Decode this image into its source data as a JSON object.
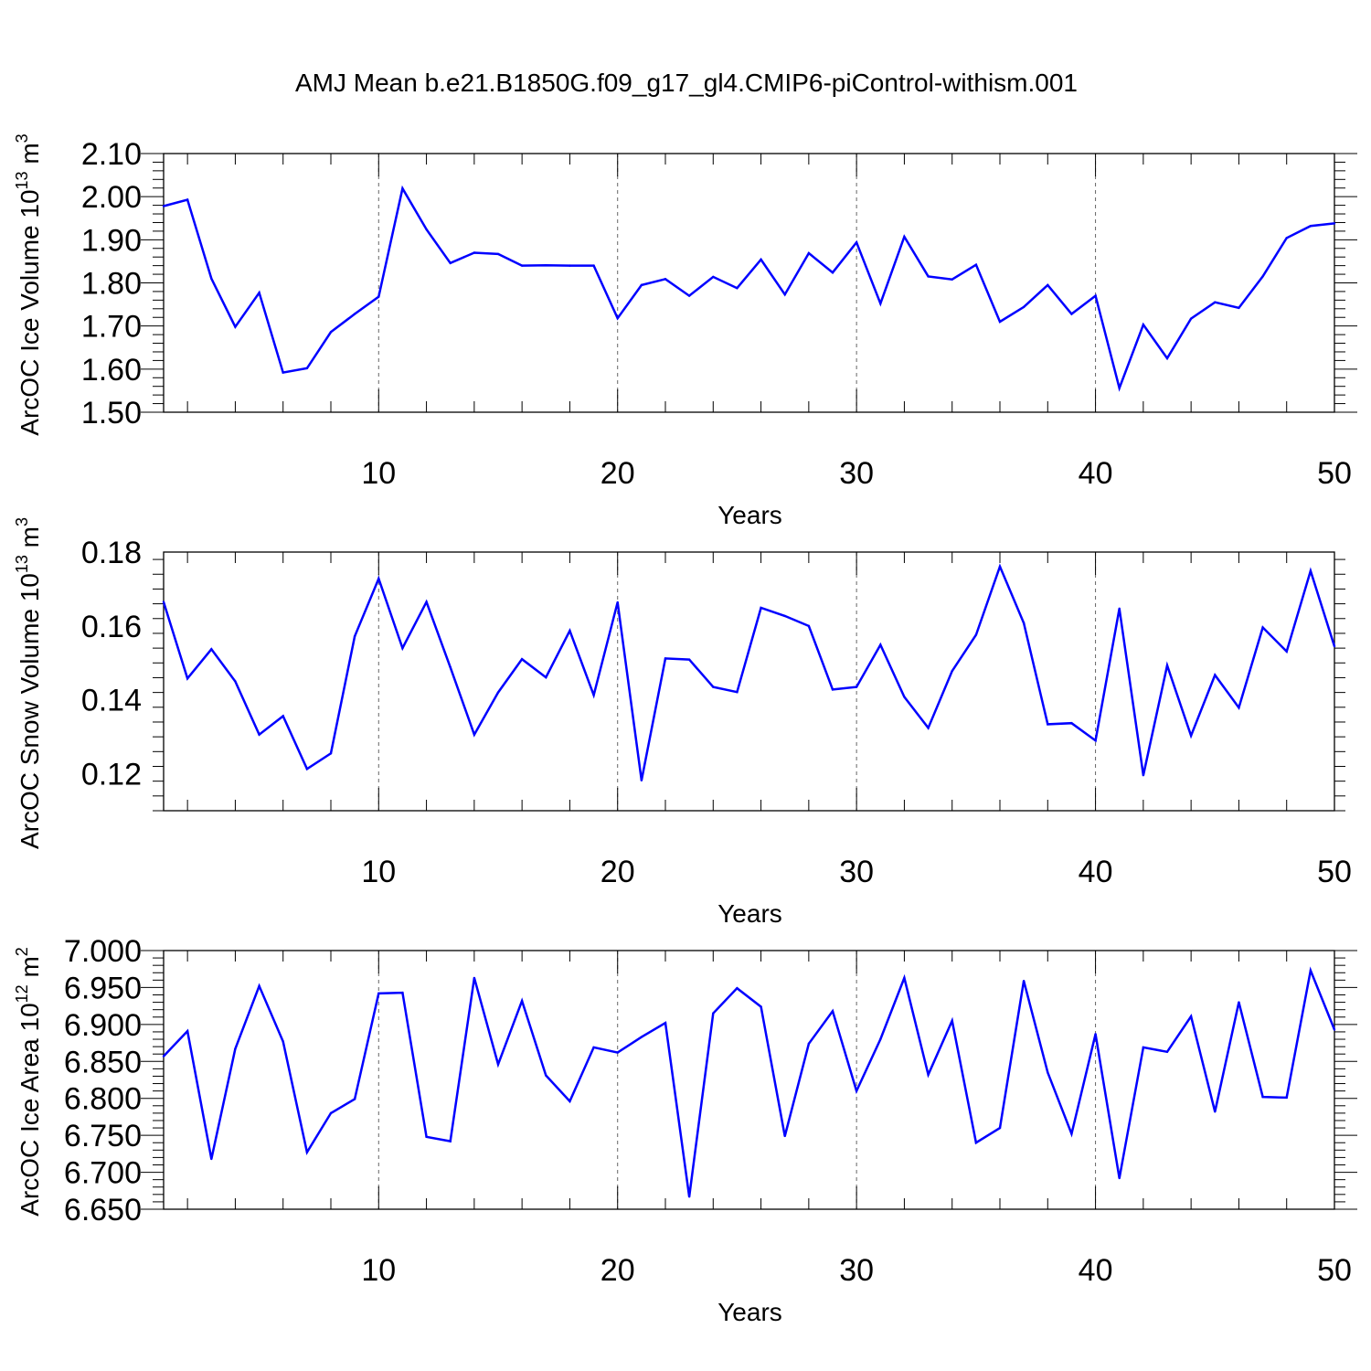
{
  "title": "AMJ Mean b.e21.B1850G.f09_g17_gl4.CMIP6-piControl-withism.001",
  "chart_data": [
    {
      "type": "line",
      "xlabel": "Years",
      "ylabel": "ArcOC Ice Volume 10",
      "ylabel_sup1": "13",
      "ylabel_mid": " m",
      "ylabel_sup2": "3",
      "xlim": [
        1,
        50
      ],
      "ylim": [
        1.5,
        2.1
      ],
      "xticks": [
        10,
        20,
        30,
        40,
        50
      ],
      "yticks": [
        "1.50",
        "1.60",
        "1.70",
        "1.80",
        "1.90",
        "2.00",
        "2.10"
      ],
      "ytick_values": [
        1.5,
        1.6,
        1.7,
        1.8,
        1.9,
        2.0,
        2.1
      ],
      "color": "#0000ff",
      "x": [
        1,
        2,
        3,
        4,
        5,
        6,
        7,
        8,
        9,
        10,
        11,
        12,
        13,
        14,
        15,
        16,
        17,
        18,
        19,
        20,
        21,
        22,
        23,
        24,
        25,
        26,
        27,
        28,
        29,
        30,
        31,
        32,
        33,
        34,
        35,
        36,
        37,
        38,
        39,
        40,
        41,
        42,
        43,
        44,
        45,
        46,
        47,
        48,
        49,
        50
      ],
      "values": [
        1.978,
        1.993,
        1.81,
        1.698,
        1.777,
        1.592,
        1.602,
        1.686,
        1.728,
        1.768,
        2.019,
        1.924,
        1.846,
        1.87,
        1.867,
        1.84,
        1.841,
        1.84,
        1.84,
        1.718,
        1.795,
        1.809,
        1.77,
        1.814,
        1.788,
        1.854,
        1.773,
        1.869,
        1.824,
        1.894,
        1.752,
        1.907,
        1.815,
        1.808,
        1.842,
        1.71,
        1.744,
        1.795,
        1.728,
        1.77,
        1.556,
        1.703,
        1.625,
        1.717,
        1.755,
        1.742,
        1.815,
        1.904,
        1.932,
        1.938
      ]
    },
    {
      "type": "line",
      "xlabel": "Years",
      "ylabel": "ArcOC Snow Volume 10",
      "ylabel_sup1": "13",
      "ylabel_mid": " m",
      "ylabel_sup2": "3",
      "xlim": [
        1,
        50
      ],
      "ylim": [
        0.11,
        0.18
      ],
      "xticks": [
        10,
        20,
        30,
        40,
        50
      ],
      "yticks": [
        "0.12",
        "0.14",
        "0.16",
        "0.18"
      ],
      "ytick_values": [
        0.12,
        0.14,
        0.16,
        0.18
      ],
      "color": "#0000ff",
      "x": [
        1,
        2,
        3,
        4,
        5,
        6,
        7,
        8,
        9,
        10,
        11,
        12,
        13,
        14,
        15,
        16,
        17,
        18,
        19,
        20,
        21,
        22,
        23,
        24,
        25,
        26,
        27,
        28,
        29,
        30,
        31,
        32,
        33,
        34,
        35,
        36,
        37,
        38,
        39,
        40,
        41,
        42,
        43,
        44,
        45,
        46,
        47,
        48,
        49,
        50
      ],
      "values": [
        0.1665,
        0.1458,
        0.1537,
        0.145,
        0.1306,
        0.1356,
        0.1213,
        0.1255,
        0.1572,
        0.1728,
        0.154,
        0.1665,
        0.1488,
        0.1306,
        0.142,
        0.151,
        0.1461,
        0.1587,
        0.1413,
        0.1664,
        0.1182,
        0.1512,
        0.1509,
        0.1435,
        0.1421,
        0.1649,
        0.1627,
        0.16,
        0.1428,
        0.1435,
        0.1549,
        0.1408,
        0.1324,
        0.1478,
        0.1576,
        0.1761,
        0.1608,
        0.1334,
        0.1337,
        0.129,
        0.1647,
        0.1196,
        0.1493,
        0.1303,
        0.1467,
        0.1379,
        0.1596,
        0.1531,
        0.1749,
        0.1545
      ]
    },
    {
      "type": "line",
      "xlabel": "Years",
      "ylabel": "ArcOC Ice Area 10",
      "ylabel_sup1": "12",
      "ylabel_mid": " m",
      "ylabel_sup2": "2",
      "xlim": [
        1,
        50
      ],
      "ylim": [
        6.65,
        7.0
      ],
      "xticks": [
        10,
        20,
        30,
        40,
        50
      ],
      "yticks": [
        "6.650",
        "6.700",
        "6.750",
        "6.800",
        "6.850",
        "6.900",
        "6.950",
        "7.000"
      ],
      "ytick_values": [
        6.65,
        6.7,
        6.75,
        6.8,
        6.85,
        6.9,
        6.95,
        7.0
      ],
      "color": "#0000ff",
      "x": [
        1,
        2,
        3,
        4,
        5,
        6,
        7,
        8,
        9,
        10,
        11,
        12,
        13,
        14,
        15,
        16,
        17,
        18,
        19,
        20,
        21,
        22,
        23,
        24,
        25,
        26,
        27,
        28,
        29,
        30,
        31,
        32,
        33,
        34,
        35,
        36,
        37,
        38,
        39,
        40,
        41,
        42,
        43,
        44,
        45,
        46,
        47,
        48,
        49,
        50
      ],
      "values": [
        6.857,
        6.891,
        6.718,
        6.867,
        6.952,
        6.877,
        6.727,
        6.78,
        6.799,
        6.942,
        6.943,
        6.748,
        6.742,
        6.963,
        6.846,
        6.932,
        6.831,
        6.796,
        6.869,
        6.862,
        6.883,
        6.902,
        6.667,
        6.915,
        6.949,
        6.924,
        6.749,
        6.874,
        6.918,
        6.81,
        6.88,
        6.963,
        6.832,
        6.905,
        6.74,
        6.76,
        6.959,
        6.835,
        6.752,
        6.887,
        6.692,
        6.869,
        6.863,
        6.911,
        6.782,
        6.93,
        6.802,
        6.801,
        6.973,
        6.893
      ]
    }
  ]
}
